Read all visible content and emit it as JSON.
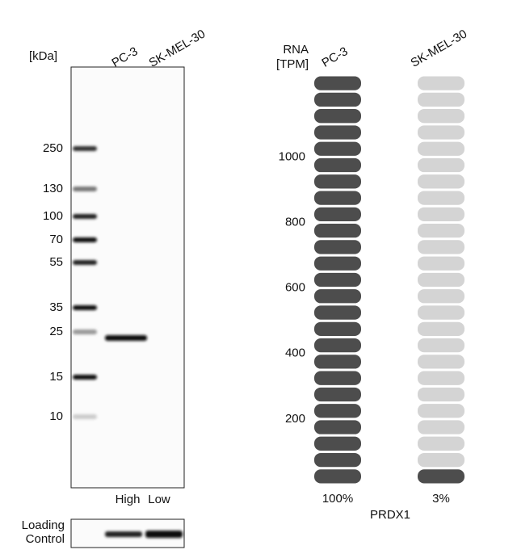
{
  "western_blot": {
    "unit_label": "[kDa]",
    "lanes": [
      "PC-3",
      "SK-MEL-30"
    ],
    "markers": [
      250,
      130,
      100,
      70,
      55,
      35,
      25,
      15,
      10
    ],
    "lane_levels": [
      "High",
      "Low"
    ],
    "loading_control": [
      "Loading",
      "Control"
    ]
  },
  "rna": {
    "axis_label": [
      "RNA",
      "[TPM]"
    ],
    "yticks": [
      200,
      400,
      600,
      800,
      1000
    ],
    "ylim": [
      0,
      1250
    ],
    "columns": [
      {
        "name": "PC-3",
        "value": 100,
        "value_label": "100%"
      },
      {
        "name": "SK-MEL-30",
        "value": 3,
        "value_label": "3%"
      }
    ],
    "gene": "PRDX1"
  }
}
